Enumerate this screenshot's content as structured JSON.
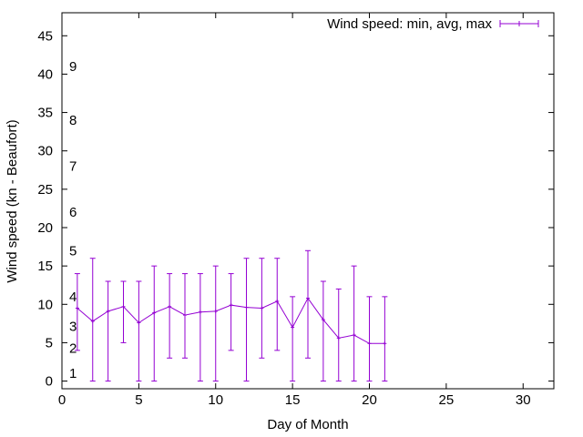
{
  "chart_data": {
    "type": "line",
    "title": "",
    "xlabel": "Day of Month",
    "ylabel": "Wind speed (kn - Beaufort)",
    "xlim": [
      0,
      32
    ],
    "ylim": [
      -1,
      48
    ],
    "xticks": [
      0,
      5,
      10,
      15,
      20,
      25,
      30
    ],
    "yticks": [
      0,
      5,
      10,
      15,
      20,
      25,
      30,
      35,
      40,
      45
    ],
    "grid": false,
    "legend_position": "top-right",
    "series_color": "#9400d3",
    "beaufort_labels": [
      {
        "label": "1",
        "y": 1
      },
      {
        "label": "2",
        "y": 4.3
      },
      {
        "label": "3",
        "y": 7.1
      },
      {
        "label": "4",
        "y": 11
      },
      {
        "label": "5",
        "y": 17
      },
      {
        "label": "6",
        "y": 22
      },
      {
        "label": "7",
        "y": 28
      },
      {
        "label": "8",
        "y": 34
      },
      {
        "label": "9",
        "y": 41
      }
    ],
    "series": [
      {
        "name": "Wind speed: min, avg, max",
        "x": [
          1,
          2,
          3,
          4,
          5,
          6,
          7,
          8,
          9,
          10,
          11,
          12,
          13,
          14,
          15,
          16,
          17,
          18,
          19,
          20,
          21
        ],
        "avg": [
          9.5,
          7.8,
          9.1,
          9.7,
          7.6,
          8.9,
          9.7,
          8.6,
          9.0,
          9.1,
          9.9,
          9.6,
          9.5,
          10.4,
          7.0,
          10.8,
          8.0,
          5.6,
          6.0,
          4.9,
          4.9
        ],
        "min": [
          4,
          0,
          0,
          5,
          0,
          0,
          3,
          3,
          0,
          0,
          4,
          0,
          3,
          4,
          0,
          3,
          0,
          0,
          0,
          0,
          0
        ],
        "max": [
          14,
          16,
          13,
          13,
          13,
          15,
          14,
          14,
          14,
          15,
          14,
          16,
          16,
          16,
          11,
          17,
          13,
          12,
          15,
          11,
          11
        ]
      }
    ]
  }
}
